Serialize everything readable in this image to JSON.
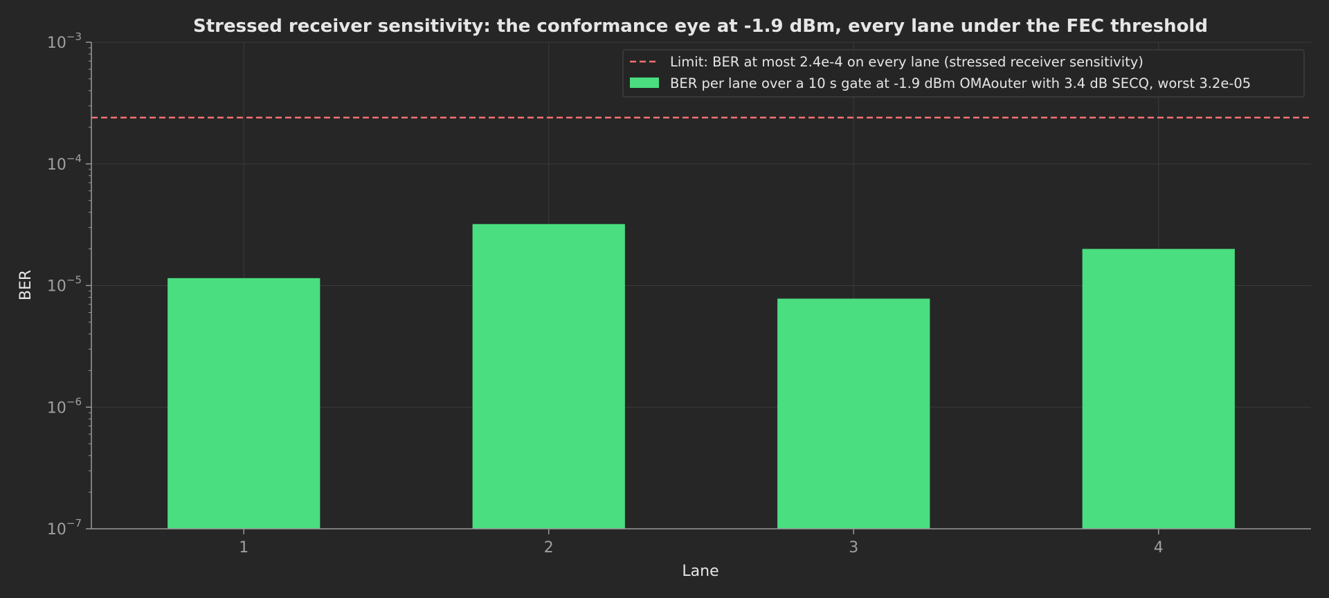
{
  "chart_data": {
    "type": "bar",
    "title": "Stressed receiver sensitivity: the conformance eye at -1.9 dBm, every lane under the FEC threshold",
    "xlabel": "Lane",
    "ylabel": "BER",
    "categories": [
      "1",
      "2",
      "3",
      "4"
    ],
    "series": [
      {
        "name": "BER per lane over a 10 s gate at -1.9 dBm OMAouter with 3.4 dB SECQ, worst 3.2e-05",
        "values": [
          1.15e-05,
          3.2e-05,
          7.8e-06,
          2e-05
        ],
        "color": "#4ade80"
      }
    ],
    "limit": {
      "name": "Limit: BER at most 2.4e-4 on every lane (stressed receiver sensitivity)",
      "value": 0.00024,
      "color": "#f87171",
      "style": "dashed"
    },
    "yscale": "log",
    "ylim": [
      1e-07,
      0.001
    ],
    "yticks": [
      {
        "value": 0.001,
        "base": "10",
        "exp": "−3"
      },
      {
        "value": 0.0001,
        "base": "10",
        "exp": "−4"
      },
      {
        "value": 1e-05,
        "base": "10",
        "exp": "−5"
      },
      {
        "value": 1e-06,
        "base": "10",
        "exp": "−6"
      },
      {
        "value": 1e-07,
        "base": "10",
        "exp": "−7"
      }
    ],
    "grid": true,
    "legend_position": "top-right"
  },
  "colors": {
    "background": "#262626",
    "grid": "#3a3a3a",
    "axis": "#9a9a9a",
    "bar": "#4ade80",
    "limit": "#f87171"
  }
}
